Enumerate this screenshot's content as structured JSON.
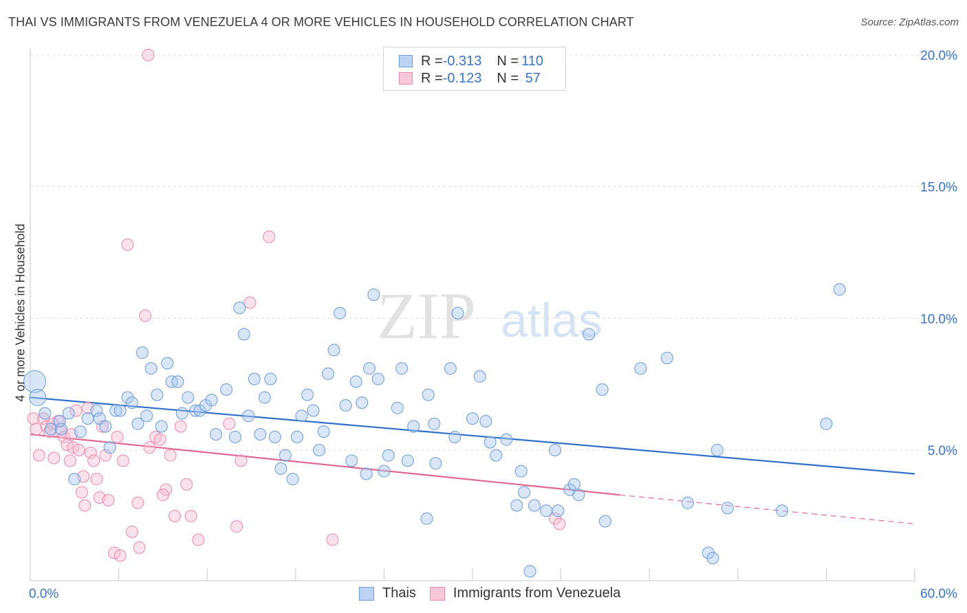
{
  "header": {
    "title": "THAI VS IMMIGRANTS FROM VENEZUELA 4 OR MORE VEHICLES IN HOUSEHOLD CORRELATION CHART",
    "source": "Source: ZipAtlas.com"
  },
  "watermark": {
    "zip": "ZIP",
    "atlas": "atlas"
  },
  "legend_top": {
    "rows": [
      {
        "r_label": "R = ",
        "r_value": "-0.313",
        "n_label": "N = ",
        "n_value": "110"
      },
      {
        "r_label": "R = ",
        "r_value": "-0.123",
        "n_label": "N = ",
        "n_value": " 57"
      }
    ]
  },
  "legend_bottom": {
    "items": [
      "Thais",
      "Immigrants from Venezuela"
    ]
  },
  "colors": {
    "blue_fill": "#a9c8f0",
    "blue_stroke": "#6a9ad8",
    "blue_line": "#2f6fcb",
    "pink_fill": "#f6bcd0",
    "pink_stroke": "#e98aaa",
    "pink_line": "#e0678f",
    "tick_label": "#3b73c8"
  },
  "chart_data": {
    "type": "scatter",
    "title": "THAI VS IMMIGRANTS FROM VENEZUELA 4 OR MORE VEHICLES IN HOUSEHOLD CORRELATION CHART",
    "xlabel": "",
    "ylabel": "4 or more Vehicles in Household",
    "xlim": [
      0,
      60
    ],
    "ylim": [
      0,
      20.5
    ],
    "x_tick_labels": [
      "0.0%",
      "60.0%"
    ],
    "y_ticks": [
      5,
      10,
      15,
      20
    ],
    "y_tick_labels": [
      "5.0%",
      "10.0%",
      "15.0%",
      "20.0%"
    ],
    "grid": "horizontal dashed",
    "legend_position": "top-center",
    "series": [
      {
        "name": "Thais",
        "r": -0.313,
        "n": 110,
        "trend": {
          "x": [
            0,
            60
          ],
          "y": [
            7.0,
            4.1
          ]
        },
        "points": [
          [
            0.3,
            7.6
          ],
          [
            0.5,
            7.0
          ],
          [
            1.0,
            6.4
          ],
          [
            1.4,
            5.8
          ],
          [
            2.0,
            6.1
          ],
          [
            2.1,
            5.8
          ],
          [
            2.6,
            6.4
          ],
          [
            3.0,
            3.9
          ],
          [
            3.4,
            5.7
          ],
          [
            3.9,
            6.2
          ],
          [
            4.5,
            6.5
          ],
          [
            4.7,
            6.2
          ],
          [
            5.1,
            5.9
          ],
          [
            5.4,
            5.1
          ],
          [
            5.8,
            6.5
          ],
          [
            6.1,
            6.5
          ],
          [
            6.6,
            7.0
          ],
          [
            6.9,
            6.8
          ],
          [
            7.3,
            6.0
          ],
          [
            7.6,
            8.7
          ],
          [
            7.9,
            6.3
          ],
          [
            8.2,
            8.1
          ],
          [
            8.6,
            7.1
          ],
          [
            8.9,
            5.9
          ],
          [
            9.3,
            8.3
          ],
          [
            9.6,
            7.6
          ],
          [
            10.0,
            7.6
          ],
          [
            10.3,
            6.4
          ],
          [
            10.7,
            7.0
          ],
          [
            11.2,
            6.5
          ],
          [
            11.5,
            6.5
          ],
          [
            11.9,
            6.7
          ],
          [
            12.3,
            6.9
          ],
          [
            12.6,
            5.6
          ],
          [
            13.3,
            7.3
          ],
          [
            13.9,
            5.5
          ],
          [
            14.2,
            10.4
          ],
          [
            14.5,
            9.4
          ],
          [
            14.8,
            6.3
          ],
          [
            15.2,
            7.7
          ],
          [
            15.6,
            5.6
          ],
          [
            15.9,
            7.0
          ],
          [
            16.3,
            7.7
          ],
          [
            16.6,
            5.5
          ],
          [
            17.0,
            4.3
          ],
          [
            17.3,
            4.8
          ],
          [
            17.8,
            3.9
          ],
          [
            18.1,
            5.5
          ],
          [
            18.4,
            6.3
          ],
          [
            18.8,
            7.1
          ],
          [
            19.2,
            6.5
          ],
          [
            19.6,
            5.0
          ],
          [
            19.9,
            5.7
          ],
          [
            20.2,
            7.9
          ],
          [
            20.6,
            8.8
          ],
          [
            21.0,
            10.2
          ],
          [
            21.4,
            6.7
          ],
          [
            21.8,
            4.6
          ],
          [
            22.1,
            7.6
          ],
          [
            22.5,
            6.8
          ],
          [
            22.8,
            4.1
          ],
          [
            23.0,
            8.1
          ],
          [
            23.3,
            10.9
          ],
          [
            23.6,
            7.7
          ],
          [
            24.0,
            4.2
          ],
          [
            24.3,
            4.8
          ],
          [
            24.9,
            6.6
          ],
          [
            25.2,
            8.1
          ],
          [
            25.6,
            4.6
          ],
          [
            26.0,
            5.9
          ],
          [
            26.9,
            2.4
          ],
          [
            27.0,
            7.1
          ],
          [
            27.4,
            6.0
          ],
          [
            27.5,
            4.5
          ],
          [
            28.5,
            8.1
          ],
          [
            28.8,
            5.5
          ],
          [
            29.0,
            10.2
          ],
          [
            30.0,
            6.2
          ],
          [
            30.5,
            7.8
          ],
          [
            30.9,
            6.1
          ],
          [
            31.2,
            5.3
          ],
          [
            31.6,
            4.8
          ],
          [
            32.3,
            5.4
          ],
          [
            33.0,
            2.9
          ],
          [
            33.3,
            4.2
          ],
          [
            33.5,
            3.4
          ],
          [
            33.9,
            0.4
          ],
          [
            34.2,
            2.9
          ],
          [
            35.0,
            2.7
          ],
          [
            35.6,
            5.0
          ],
          [
            35.8,
            2.7
          ],
          [
            36.6,
            3.5
          ],
          [
            36.9,
            3.7
          ],
          [
            37.2,
            3.3
          ],
          [
            37.9,
            9.4
          ],
          [
            38.8,
            7.3
          ],
          [
            39.0,
            2.3
          ],
          [
            41.4,
            8.1
          ],
          [
            43.2,
            8.5
          ],
          [
            44.6,
            3.0
          ],
          [
            46.6,
            5.0
          ],
          [
            46.0,
            1.1
          ],
          [
            46.3,
            0.9
          ],
          [
            47.3,
            2.8
          ],
          [
            51.0,
            2.7
          ],
          [
            54.0,
            6.0
          ],
          [
            54.9,
            11.1
          ]
        ]
      },
      {
        "name": "Immigrants from Venezuela",
        "r": -0.123,
        "n": 57,
        "trend": {
          "x": [
            0,
            40
          ],
          "y": [
            5.6,
            3.3
          ]
        },
        "trend_dashed_extension": {
          "x": [
            40,
            60
          ],
          "y": [
            3.3,
            2.2
          ]
        },
        "points": [
          [
            0.2,
            6.2
          ],
          [
            0.4,
            5.8
          ],
          [
            0.6,
            4.8
          ],
          [
            0.9,
            6.2
          ],
          [
            1.1,
            5.9
          ],
          [
            1.3,
            5.7
          ],
          [
            1.6,
            4.7
          ],
          [
            1.9,
            6.1
          ],
          [
            2.1,
            5.7
          ],
          [
            2.3,
            5.5
          ],
          [
            2.5,
            5.2
          ],
          [
            2.7,
            4.6
          ],
          [
            2.9,
            5.1
          ],
          [
            3.1,
            6.5
          ],
          [
            3.3,
            5.0
          ],
          [
            3.5,
            3.4
          ],
          [
            3.7,
            2.9
          ],
          [
            3.9,
            6.6
          ],
          [
            4.1,
            4.9
          ],
          [
            4.3,
            4.6
          ],
          [
            4.5,
            3.9
          ],
          [
            4.7,
            3.2
          ],
          [
            4.9,
            5.9
          ],
          [
            5.1,
            4.8
          ],
          [
            5.3,
            3.1
          ],
          [
            5.7,
            1.1
          ],
          [
            5.9,
            5.5
          ],
          [
            6.1,
            1.0
          ],
          [
            6.3,
            4.6
          ],
          [
            6.6,
            12.8
          ],
          [
            7.3,
            3.0
          ],
          [
            7.4,
            1.3
          ],
          [
            7.8,
            10.1
          ],
          [
            8.1,
            5.1
          ],
          [
            8.5,
            5.5
          ],
          [
            8.8,
            5.4
          ],
          [
            9.2,
            3.5
          ],
          [
            9.5,
            4.8
          ],
          [
            9.8,
            2.5
          ],
          [
            10.2,
            5.9
          ],
          [
            10.6,
            3.7
          ],
          [
            10.9,
            2.5
          ],
          [
            11.4,
            1.6
          ],
          [
            13.5,
            6.0
          ],
          [
            14.0,
            2.1
          ],
          [
            14.3,
            4.6
          ],
          [
            14.9,
            10.6
          ],
          [
            16.2,
            13.1
          ],
          [
            20.5,
            1.6
          ],
          [
            8.0,
            20.0
          ],
          [
            35.6,
            2.4
          ],
          [
            35.9,
            2.2
          ],
          [
            1.5,
            6.0
          ],
          [
            2.8,
            5.6
          ],
          [
            3.6,
            4.0
          ],
          [
            6.9,
            1.9
          ],
          [
            9.0,
            3.3
          ]
        ]
      }
    ]
  }
}
